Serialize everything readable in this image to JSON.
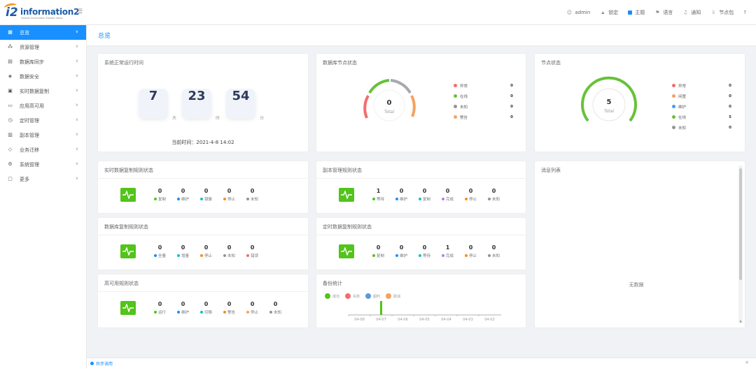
{
  "header": {
    "logo_number": "i2",
    "logo_word": "information2",
    "logo_tagline": "Double Information Double Value",
    "nav": [
      {
        "icon": "user-icon",
        "label": "admin"
      },
      {
        "icon": "lock-icon",
        "label": "锁定"
      },
      {
        "icon": "theme-icon",
        "label": "主题"
      },
      {
        "icon": "language-icon",
        "label": "语言"
      },
      {
        "icon": "bell-icon",
        "label": "通知"
      },
      {
        "icon": "download-icon",
        "label": "节点包"
      },
      {
        "icon": "help-icon",
        "label": "?"
      }
    ]
  },
  "sidebar": {
    "items": [
      {
        "label": "总览",
        "icon": "dashboard-icon",
        "active": true
      },
      {
        "label": "资源管理",
        "icon": "resource-icon"
      },
      {
        "label": "数据库同步",
        "icon": "database-icon"
      },
      {
        "label": "数据安全",
        "icon": "shield-icon"
      },
      {
        "label": "实时数据复制",
        "icon": "copy-icon"
      },
      {
        "label": "应用高可用",
        "icon": "server-icon"
      },
      {
        "label": "定时管理",
        "icon": "timer-icon"
      },
      {
        "label": "副本管理",
        "icon": "replica-icon"
      },
      {
        "label": "业务迁移",
        "icon": "migrate-icon"
      },
      {
        "label": "系统管理",
        "icon": "gear-icon"
      },
      {
        "label": "更多",
        "icon": "more-icon"
      }
    ]
  },
  "breadcrumb": "总览",
  "uptime": {
    "title": "系统正常运行时间",
    "days": "7",
    "days_unit": "天",
    "hours": "23",
    "hours_unit": "时",
    "minutes": "54",
    "minutes_unit": "分",
    "now_text": "当前时间：2021-4-8 14:02"
  },
  "db_nodes": {
    "title": "数据库节点状态",
    "total": "0",
    "total_label": "Total",
    "legend": [
      {
        "label": "异常",
        "value": "0",
        "color": "#f56c6c"
      },
      {
        "label": "在线",
        "value": "0",
        "color": "#67c23a"
      },
      {
        "label": "未知",
        "value": "0",
        "color": "#909399"
      },
      {
        "label": "警告",
        "value": "0",
        "color": "#f4a261"
      }
    ]
  },
  "nodes": {
    "title": "节点状态",
    "total": "5",
    "total_label": "Total",
    "legend": [
      {
        "label": "异常",
        "value": "0",
        "color": "#f56c6c"
      },
      {
        "label": "闲置",
        "value": "0",
        "color": "#f4a261"
      },
      {
        "label": "维护",
        "value": "0",
        "color": "#409eff"
      },
      {
        "label": "在线",
        "value": "5",
        "color": "#67c23a"
      },
      {
        "label": "未知",
        "value": "0",
        "color": "#909399"
      }
    ]
  },
  "realtime_rules": {
    "title": "实时数据复制规则状态",
    "stats": [
      {
        "value": "0",
        "label": "复制",
        "color": "#52c41a"
      },
      {
        "value": "0",
        "label": "维护",
        "color": "#1890ff"
      },
      {
        "value": "0",
        "label": "镜像",
        "color": "#13c2c2"
      },
      {
        "value": "0",
        "label": "停止",
        "color": "#fa8c16"
      },
      {
        "value": "0",
        "label": "未知",
        "color": "#909399"
      }
    ]
  },
  "replica_rules": {
    "title": "副本管理规则状态",
    "stats": [
      {
        "value": "1",
        "label": "等待",
        "color": "#52c41a"
      },
      {
        "value": "0",
        "label": "维护",
        "color": "#1890ff"
      },
      {
        "value": "0",
        "label": "复制",
        "color": "#13c2c2"
      },
      {
        "value": "0",
        "label": "完成",
        "color": "#b37feb"
      },
      {
        "value": "0",
        "label": "停止",
        "color": "#fa8c16"
      },
      {
        "value": "0",
        "label": "未知",
        "color": "#909399"
      }
    ]
  },
  "messages": {
    "title": "消息列表",
    "empty": "无数据"
  },
  "db_sync_rules": {
    "title": "数据库复制规则状态",
    "stats": [
      {
        "value": "0",
        "label": "全量",
        "color": "#1890ff"
      },
      {
        "value": "0",
        "label": "增量",
        "color": "#13c2c2"
      },
      {
        "value": "0",
        "label": "停止",
        "color": "#fa8c16"
      },
      {
        "value": "0",
        "label": "未知",
        "color": "#909399"
      },
      {
        "value": "0",
        "label": "错误",
        "color": "#f56c6c"
      }
    ]
  },
  "scheduled_rules": {
    "title": "定时数据复制规则状态",
    "stats": [
      {
        "value": "0",
        "label": "复制",
        "color": "#52c41a"
      },
      {
        "value": "0",
        "label": "维护",
        "color": "#1890ff"
      },
      {
        "value": "0",
        "label": "等待",
        "color": "#13c2c2"
      },
      {
        "value": "1",
        "label": "完成",
        "color": "#b37feb"
      },
      {
        "value": "0",
        "label": "停止",
        "color": "#fa8c16"
      },
      {
        "value": "0",
        "label": "未知",
        "color": "#909399"
      }
    ]
  },
  "ha_rules": {
    "title": "高可用规则状态",
    "stats": [
      {
        "value": "0",
        "label": "运行",
        "color": "#52c41a"
      },
      {
        "value": "0",
        "label": "维护",
        "color": "#1890ff"
      },
      {
        "value": "0",
        "label": "切换",
        "color": "#13c2c2"
      },
      {
        "value": "0",
        "label": "警告",
        "color": "#fa8c16"
      },
      {
        "value": "0",
        "label": "停止",
        "color": "#f4a261"
      },
      {
        "value": "0",
        "label": "未知",
        "color": "#909399"
      }
    ]
  },
  "backup": {
    "title": "备份统计",
    "legend": [
      {
        "label": "成功",
        "color": "#52c41a"
      },
      {
        "label": "失败",
        "color": "#f56c6c"
      },
      {
        "label": "超时",
        "color": "#5b9bd5"
      },
      {
        "label": "取消",
        "color": "#f4a261"
      }
    ]
  },
  "chart_data": {
    "type": "bar",
    "categories": [
      "04-08",
      "04-07",
      "04-06",
      "04-05",
      "04-04",
      "04-03",
      "04-02"
    ],
    "series": [
      {
        "values": [
          0,
          1,
          0,
          0,
          0,
          0,
          0
        ],
        "color": "#52c41a"
      }
    ]
  },
  "footer": {
    "status": "异步调用",
    "close": "×"
  }
}
